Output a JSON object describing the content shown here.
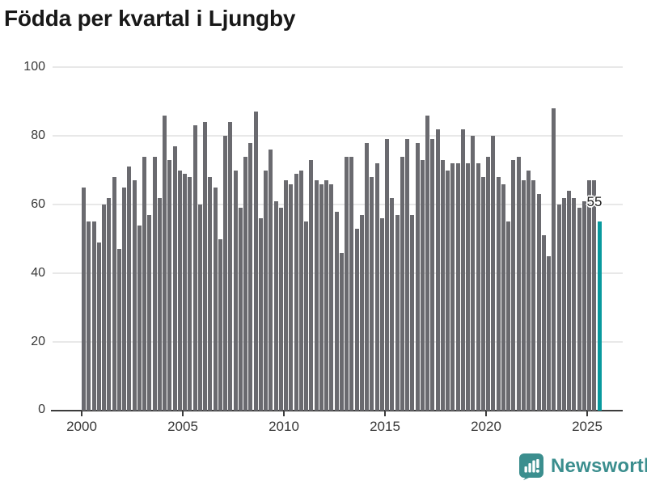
{
  "title": "Födda per kvartal i Ljungby",
  "chart_data": {
    "type": "bar",
    "title": "Födda per kvartal i Ljungby",
    "frequency": "quarterly",
    "start": "2000 Q1",
    "end": "2025 Q3",
    "x_tick_labels": [
      "2000",
      "2005",
      "2010",
      "2015",
      "2020",
      "2025"
    ],
    "y_ticks": [
      0,
      20,
      40,
      60,
      80,
      100
    ],
    "ylim": [
      0,
      100
    ],
    "grid": "horizontal",
    "legend": "none",
    "bar_color": "#6A6A6F",
    "highlight_color": "#08999E",
    "series": [
      {
        "name": "Födda per kvartal",
        "years": [
          {
            "year": 2000,
            "values": [
              65,
              55,
              55,
              49
            ]
          },
          {
            "year": 2001,
            "values": [
              60,
              62,
              68,
              47
            ]
          },
          {
            "year": 2002,
            "values": [
              65,
              71,
              67,
              54
            ]
          },
          {
            "year": 2003,
            "values": [
              74,
              57,
              74,
              62
            ]
          },
          {
            "year": 2004,
            "values": [
              86,
              73,
              77,
              70
            ]
          },
          {
            "year": 2005,
            "values": [
              69,
              68,
              83,
              60
            ]
          },
          {
            "year": 2006,
            "values": [
              84,
              68,
              65,
              50
            ]
          },
          {
            "year": 2007,
            "values": [
              80,
              84,
              70,
              59
            ]
          },
          {
            "year": 2008,
            "values": [
              74,
              78,
              87,
              56
            ]
          },
          {
            "year": 2009,
            "values": [
              70,
              76,
              61,
              59
            ]
          },
          {
            "year": 2010,
            "values": [
              67,
              66,
              69,
              70
            ]
          },
          {
            "year": 2011,
            "values": [
              55,
              73,
              67,
              66
            ]
          },
          {
            "year": 2012,
            "values": [
              67,
              66,
              58,
              46
            ]
          },
          {
            "year": 2013,
            "values": [
              74,
              74,
              53,
              57
            ]
          },
          {
            "year": 2014,
            "values": [
              78,
              68,
              72,
              56
            ]
          },
          {
            "year": 2015,
            "values": [
              79,
              62,
              57,
              74
            ]
          },
          {
            "year": 2016,
            "values": [
              79,
              57,
              78,
              73
            ]
          },
          {
            "year": 2017,
            "values": [
              86,
              79,
              82,
              73
            ]
          },
          {
            "year": 2018,
            "values": [
              70,
              72,
              72,
              82
            ]
          },
          {
            "year": 2019,
            "values": [
              72,
              80,
              72,
              68
            ]
          },
          {
            "year": 2020,
            "values": [
              74,
              80,
              68,
              66
            ]
          },
          {
            "year": 2021,
            "values": [
              55,
              73,
              74,
              67
            ]
          },
          {
            "year": 2022,
            "values": [
              70,
              67,
              63,
              51
            ]
          },
          {
            "year": 2023,
            "values": [
              45,
              88,
              60,
              62
            ]
          },
          {
            "year": 2024,
            "values": [
              64,
              62,
              59,
              61
            ]
          },
          {
            "year": 2025,
            "values": [
              67,
              67,
              55
            ]
          }
        ]
      }
    ],
    "highlight": {
      "target": "2025 Q3",
      "value": 55,
      "label": "55"
    }
  },
  "annotation": {
    "text": "55"
  },
  "footer": {
    "brand": "Newsworthy",
    "brand_color": "#3B8E8E",
    "icon": "bar-chart-speech-bubble-icon"
  }
}
